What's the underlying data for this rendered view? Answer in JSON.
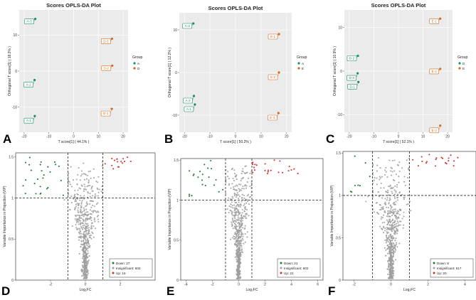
{
  "chart_data": [
    {
      "panel": "A",
      "type": "scatter",
      "title": "Scores OPLS-DA Plot",
      "xlabel": "T score[1] ( 44.1% )",
      "ylabel": "Orthogonal T score[1] ( 18.2% )",
      "xlim": [
        -22,
        22
      ],
      "ylim": [
        -17,
        17
      ],
      "xticks": [
        -20,
        -10,
        0,
        10,
        20
      ],
      "yticks": [
        -10,
        0,
        10
      ],
      "legend_title": "Group",
      "groups": [
        {
          "name": "A",
          "color": "#1b8c6b",
          "points": [
            {
              "label": "A-3",
              "x": -15.5,
              "y": 14.5
            },
            {
              "label": "A-2",
              "x": -15.8,
              "y": -2.5
            },
            {
              "label": "A-1",
              "x": -15.7,
              "y": -12.5
            }
          ]
        },
        {
          "name": "D",
          "color": "#d2691e",
          "points": [
            {
              "label": "D-3",
              "x": 15.5,
              "y": 9.0
            },
            {
              "label": "D-2",
              "x": 15.6,
              "y": 1.5
            },
            {
              "label": "D-1",
              "x": 15.4,
              "y": -10.5
            }
          ]
        }
      ]
    },
    {
      "panel": "B",
      "type": "scatter",
      "title": "Scores OPLS-DA Plot",
      "xlabel": "T score[1] ( 50.2% )",
      "ylabel": "Orthogonal T score[1] ( 12.2% )",
      "xlim": [
        -22,
        22
      ],
      "ylim": [
        -14,
        14
      ],
      "xticks": [
        -20,
        -10,
        0,
        10,
        20
      ],
      "yticks": [
        -10,
        0,
        10
      ],
      "legend_title": "Group",
      "groups": [
        {
          "name": "A",
          "color": "#1b8c6b",
          "points": [
            {
              "label": "A-3",
              "x": -16.5,
              "y": 11.5
            },
            {
              "label": "A-2",
              "x": -16.3,
              "y": -5.5
            },
            {
              "label": "A-1",
              "x": -15.9,
              "y": -7.5
            }
          ]
        },
        {
          "name": "E",
          "color": "#d2691e",
          "points": [
            {
              "label": "E-1",
              "x": 17.0,
              "y": 9.0
            },
            {
              "label": "E-2",
              "x": 17.0,
              "y": 0.0
            },
            {
              "label": "E-3",
              "x": 16.8,
              "y": -9.5
            }
          ]
        }
      ]
    },
    {
      "panel": "C",
      "type": "scatter",
      "title": "Scores OPLS-DA Plot",
      "xlabel": "T score[1] ( 52.1% )",
      "ylabel": "Orthogonal T score[1] ( 10.9% )",
      "xlim": [
        -22,
        22
      ],
      "ylim": [
        -14,
        14
      ],
      "xticks": [
        -20,
        -10,
        0,
        10,
        20
      ],
      "yticks": [
        -10,
        0,
        10
      ],
      "legend_title": "Group",
      "groups": [
        {
          "name": "D",
          "color": "#1b8c6b",
          "points": [
            {
              "label": "D-2",
              "x": -16.5,
              "y": 3.5
            },
            {
              "label": "D-3",
              "x": -16.6,
              "y": -0.5
            },
            {
              "label": "D-1",
              "x": -16.3,
              "y": -2.5
            }
          ]
        },
        {
          "name": "E",
          "color": "#d2691e",
          "points": [
            {
              "label": "E-1",
              "x": 17.0,
              "y": 12.0
            },
            {
              "label": "E-2",
              "x": 17.0,
              "y": 0.5
            },
            {
              "label": "E-3",
              "x": 17.0,
              "y": -12.5
            }
          ]
        }
      ]
    },
    {
      "panel": "D",
      "type": "scatter",
      "subtype": "volcano",
      "xlabel": "Log₂FC",
      "ylabel": "Variable Importance in Projection (VIP)",
      "xlim": [
        -4,
        4
      ],
      "ylim": [
        0,
        1.55
      ],
      "xticks": [
        -2,
        0,
        2
      ],
      "yticks": [
        0.0,
        0.5,
        1.0,
        1.5
      ],
      "threshold_x": [
        -1,
        1
      ],
      "threshold_y": 1.0,
      "legend": [
        {
          "label": "Down: 27",
          "color": "#1e7d32"
        },
        {
          "label": "Insignificant: 602",
          "color": "#9e9e9e"
        },
        {
          "label": "Up: 16",
          "color": "#d32f2f"
        }
      ],
      "counts": {
        "down": 27,
        "insignificant": 602,
        "up": 16
      },
      "x_range_down": [
        -3.6,
        -1.05
      ],
      "x_range_up": [
        1.05,
        3.0
      ]
    },
    {
      "panel": "E",
      "type": "scatter",
      "subtype": "volcano",
      "xlabel": "Log₂FC",
      "ylabel": "Variable Importance in Projection (VIP)",
      "xlim": [
        -4.4,
        6.4
      ],
      "ylim": [
        0,
        1.52
      ],
      "xticks": [
        -4,
        -2,
        0,
        2,
        4,
        6
      ],
      "yticks": [
        0.0,
        0.5,
        1.0,
        1.5
      ],
      "threshold_x": [
        -1,
        1
      ],
      "threshold_y": 1.0,
      "legend": [
        {
          "label": "Down: 21",
          "color": "#1e7d32"
        },
        {
          "label": "Insignificant: 602",
          "color": "#9e9e9e"
        },
        {
          "label": "Up: 22",
          "color": "#d32f2f"
        }
      ],
      "counts": {
        "down": 21,
        "insignificant": 602,
        "up": 22
      },
      "x_range_down": [
        -3.9,
        -1.05
      ],
      "x_range_up": [
        1.05,
        5.0
      ]
    },
    {
      "panel": "F",
      "type": "scatter",
      "subtype": "volcano",
      "xlabel": "Log₂FC",
      "ylabel": "Variable Importance in Projection (VIP)",
      "xlim": [
        -2.6,
        4.6
      ],
      "ylim": [
        0,
        1.52
      ],
      "xticks": [
        -2,
        0,
        2,
        4
      ],
      "yticks": [
        0.0,
        0.5,
        1.0,
        1.5
      ],
      "threshold_x": [
        -1,
        1
      ],
      "threshold_y": 1.0,
      "legend": [
        {
          "label": "Down: 8",
          "color": "#1e7d32"
        },
        {
          "label": "Insignificant: 617",
          "color": "#9e9e9e"
        },
        {
          "label": "Up: 20",
          "color": "#d32f2f"
        }
      ],
      "counts": {
        "down": 8,
        "insignificant": 617,
        "up": 20
      },
      "x_range_down": [
        -2.2,
        -1.05
      ],
      "x_range_up": [
        1.05,
        4.3
      ]
    }
  ]
}
